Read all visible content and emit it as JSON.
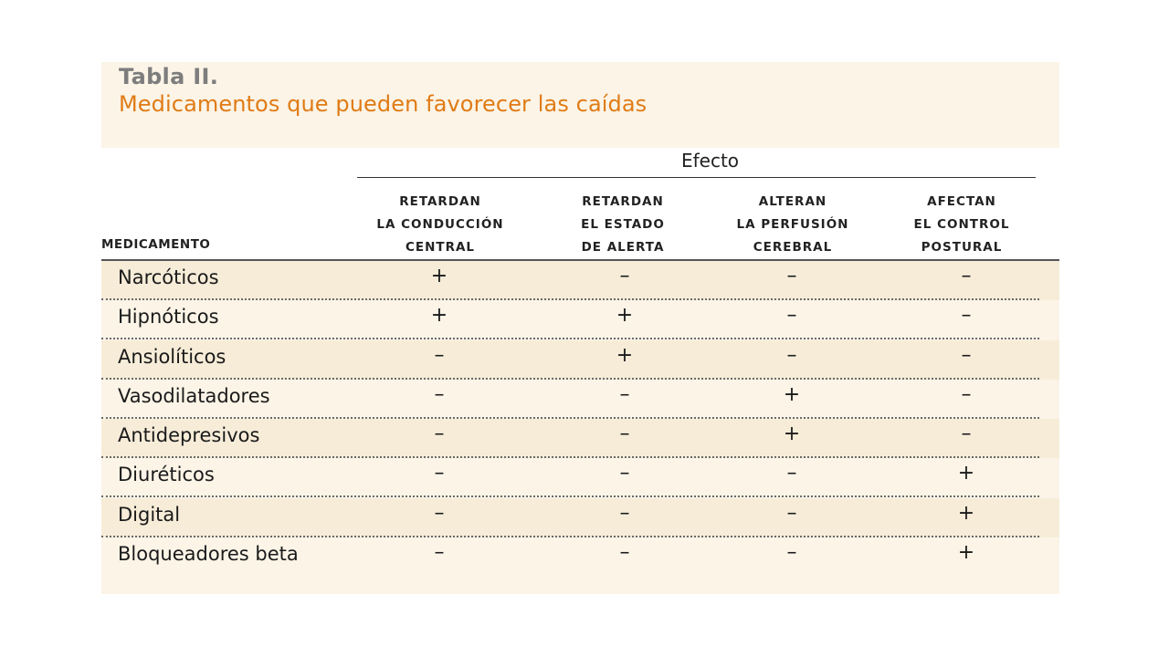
{
  "table": {
    "label": "Tabla II.",
    "title": "Medicamentos que pueden favorecer las caídas",
    "group_header": "Efecto",
    "row_header": "MEDICAMENTO",
    "columns": [
      [
        "RETARDAN",
        "LA CONDUCCIÓN",
        "CENTRAL"
      ],
      [
        "RETARDAN",
        "EL ESTADO",
        "DE ALERTA"
      ],
      [
        "ALTERAN",
        "LA PERFUSIÓN",
        "CEREBRAL"
      ],
      [
        "AFECTAN",
        "EL CONTROL",
        "POSTURAL"
      ]
    ],
    "rows": [
      {
        "name": "Narcóticos",
        "values": [
          "+",
          "–",
          "–",
          "–"
        ]
      },
      {
        "name": "Hipnóticos",
        "values": [
          "+",
          "+",
          "–",
          "–"
        ]
      },
      {
        "name": "Ansiolíticos",
        "values": [
          "–",
          "+",
          "–",
          "–"
        ]
      },
      {
        "name": "Vasodilatadores",
        "values": [
          "–",
          "–",
          "+",
          "–"
        ]
      },
      {
        "name": "Antidepresivos",
        "values": [
          "–",
          "–",
          "+",
          "–"
        ]
      },
      {
        "name": "Diuréticos",
        "values": [
          "–",
          "–",
          "–",
          "+"
        ]
      },
      {
        "name": "Digital",
        "values": [
          "–",
          "–",
          "–",
          "+"
        ]
      },
      {
        "name": "Bloqueadores beta",
        "values": [
          "–",
          "–",
          "–",
          "+"
        ]
      }
    ]
  }
}
